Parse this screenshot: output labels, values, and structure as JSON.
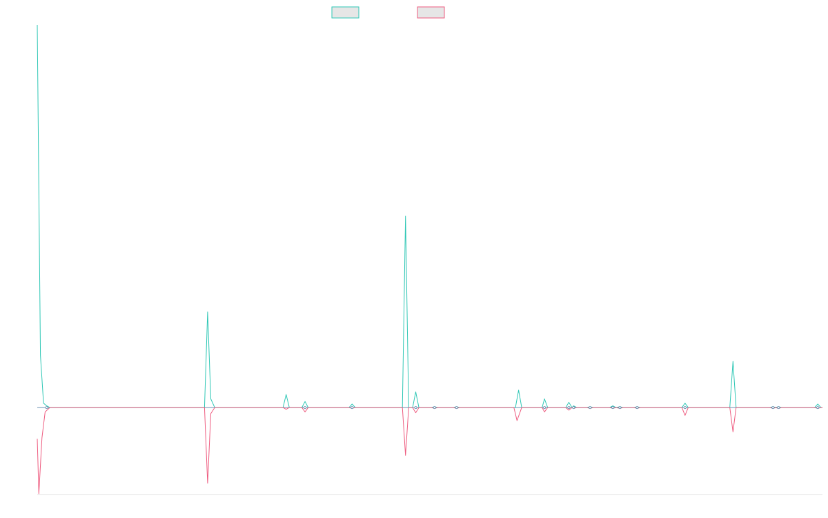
{
  "colors": {
    "series_a": "#2ec7b5",
    "series_b": "#ee5b7f",
    "baseline": "#6a8fb0",
    "axis": "#e0e0e0",
    "legend_fill": "#e6e6e6"
  },
  "chart_data": {
    "type": "line",
    "title": "",
    "xlabel": "",
    "ylabel": "",
    "grid": false,
    "legend": "top-center",
    "x_range": [
      0,
      1
    ],
    "ylim": [
      -1.0,
      4.4
    ],
    "series": [
      {
        "color": "#2ec7b5",
        "points": [
          [
            0.0,
            4.4
          ],
          [
            0.004,
            0.6
          ],
          [
            0.008,
            0.05
          ],
          [
            0.012,
            0.02
          ],
          [
            0.016,
            0.0
          ],
          [
            0.213,
            0.0
          ],
          [
            0.217,
            1.1
          ],
          [
            0.221,
            0.1
          ],
          [
            0.226,
            0.0
          ],
          [
            0.313,
            0.0
          ],
          [
            0.317,
            0.15
          ],
          [
            0.321,
            0.0
          ],
          [
            0.337,
            0.0
          ],
          [
            0.341,
            0.07
          ],
          [
            0.345,
            0.0
          ],
          [
            0.397,
            0.0
          ],
          [
            0.401,
            0.04
          ],
          [
            0.405,
            0.0
          ],
          [
            0.465,
            0.0
          ],
          [
            0.469,
            2.2
          ],
          [
            0.473,
            0.0
          ],
          [
            0.478,
            0.0
          ],
          [
            0.482,
            0.18
          ],
          [
            0.486,
            0.0
          ],
          [
            0.502,
            0.0
          ],
          [
            0.506,
            0.01
          ],
          [
            0.51,
            0.0
          ],
          [
            0.53,
            0.0
          ],
          [
            0.534,
            0.01
          ],
          [
            0.538,
            0.0
          ],
          [
            0.609,
            0.0
          ],
          [
            0.613,
            0.2
          ],
          [
            0.617,
            0.0
          ],
          [
            0.643,
            0.0
          ],
          [
            0.646,
            0.1
          ],
          [
            0.65,
            0.0
          ],
          [
            0.673,
            0.0
          ],
          [
            0.677,
            0.06
          ],
          [
            0.681,
            0.0
          ],
          [
            0.683,
            0.02
          ],
          [
            0.687,
            0.0
          ],
          [
            0.7,
            0.0
          ],
          [
            0.704,
            0.01
          ],
          [
            0.708,
            0.0
          ],
          [
            0.729,
            0.0
          ],
          [
            0.733,
            0.02
          ],
          [
            0.737,
            0.0
          ],
          [
            0.742,
            0.01
          ],
          [
            0.746,
            0.0
          ],
          [
            0.76,
            0.0
          ],
          [
            0.764,
            0.01
          ],
          [
            0.768,
            0.0
          ],
          [
            0.821,
            0.0
          ],
          [
            0.825,
            0.05
          ],
          [
            0.829,
            0.0
          ],
          [
            0.882,
            0.0
          ],
          [
            0.886,
            0.53
          ],
          [
            0.89,
            0.0
          ],
          [
            0.933,
            0.0
          ],
          [
            0.937,
            0.01
          ],
          [
            0.941,
            0.0
          ],
          [
            0.94,
            0.0
          ],
          [
            0.944,
            0.01
          ],
          [
            0.948,
            0.0
          ],
          [
            0.99,
            0.0
          ],
          [
            0.994,
            0.04
          ],
          [
            0.998,
            0.0
          ],
          [
            1.0,
            0.0
          ]
        ]
      },
      {
        "color": "#ee5b7f",
        "points": [
          [
            0.0,
            -0.36
          ],
          [
            0.002,
            -0.99
          ],
          [
            0.006,
            -0.35
          ],
          [
            0.01,
            -0.05
          ],
          [
            0.016,
            0.0
          ],
          [
            0.213,
            0.0
          ],
          [
            0.217,
            -0.87
          ],
          [
            0.221,
            -0.07
          ],
          [
            0.226,
            0.0
          ],
          [
            0.313,
            0.0
          ],
          [
            0.317,
            -0.02
          ],
          [
            0.321,
            0.0
          ],
          [
            0.337,
            0.0
          ],
          [
            0.341,
            -0.05
          ],
          [
            0.345,
            0.0
          ],
          [
            0.397,
            0.0
          ],
          [
            0.401,
            -0.01
          ],
          [
            0.405,
            0.0
          ],
          [
            0.465,
            0.0
          ],
          [
            0.469,
            -0.55
          ],
          [
            0.473,
            0.0
          ],
          [
            0.478,
            0.0
          ],
          [
            0.482,
            -0.06
          ],
          [
            0.486,
            0.0
          ],
          [
            0.502,
            0.0
          ],
          [
            0.506,
            -0.01
          ],
          [
            0.51,
            0.0
          ],
          [
            0.53,
            0.0
          ],
          [
            0.534,
            -0.01
          ],
          [
            0.538,
            0.0
          ],
          [
            0.607,
            0.0
          ],
          [
            0.611,
            -0.15
          ],
          [
            0.617,
            0.0
          ],
          [
            0.643,
            0.0
          ],
          [
            0.646,
            -0.05
          ],
          [
            0.65,
            0.0
          ],
          [
            0.673,
            0.0
          ],
          [
            0.677,
            -0.03
          ],
          [
            0.681,
            0.0
          ],
          [
            0.683,
            -0.01
          ],
          [
            0.687,
            0.0
          ],
          [
            0.7,
            0.0
          ],
          [
            0.704,
            -0.01
          ],
          [
            0.708,
            0.0
          ],
          [
            0.729,
            0.0
          ],
          [
            0.733,
            -0.01
          ],
          [
            0.737,
            0.0
          ],
          [
            0.742,
            -0.01
          ],
          [
            0.746,
            0.0
          ],
          [
            0.76,
            0.0
          ],
          [
            0.764,
            -0.01
          ],
          [
            0.768,
            0.0
          ],
          [
            0.821,
            0.0
          ],
          [
            0.825,
            -0.09
          ],
          [
            0.829,
            0.0
          ],
          [
            0.882,
            0.0
          ],
          [
            0.886,
            -0.28
          ],
          [
            0.89,
            0.0
          ],
          [
            0.933,
            0.0
          ],
          [
            0.937,
            -0.01
          ],
          [
            0.941,
            0.0
          ],
          [
            0.94,
            0.0
          ],
          [
            0.944,
            -0.01
          ],
          [
            0.948,
            0.0
          ],
          [
            0.99,
            0.0
          ],
          [
            0.994,
            -0.01
          ],
          [
            0.998,
            0.0
          ],
          [
            1.0,
            0.0
          ]
        ]
      }
    ],
    "markers": [
      0.012,
      0.341,
      0.401,
      0.482,
      0.506,
      0.534,
      0.646,
      0.677,
      0.683,
      0.704,
      0.733,
      0.742,
      0.764,
      0.825,
      0.937,
      0.944,
      0.994
    ]
  }
}
